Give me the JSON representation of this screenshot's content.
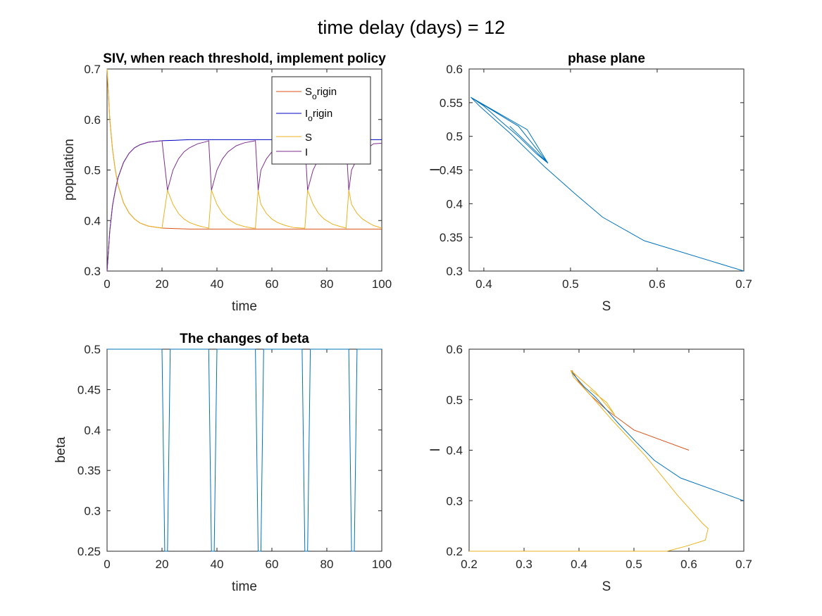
{
  "figure": {
    "suptitle": "time delay (days) = 12"
  },
  "chart_data": [
    {
      "type": "line",
      "title": "SIV, when reach threshold, implement policy",
      "xlabel": "time",
      "ylabel": "population",
      "xlim": [
        0,
        100
      ],
      "ylim": [
        0.3,
        0.7
      ],
      "xticks": [
        "0",
        "20",
        "40",
        "60",
        "80",
        "100"
      ],
      "yticks": [
        "0.3",
        "0.4",
        "0.5",
        "0.6",
        "0.7"
      ],
      "legend": {
        "position": "top-right",
        "entries": [
          {
            "base": "S",
            "sub": "o",
            "rest": "rigin",
            "color": "#d95319"
          },
          {
            "base": "I",
            "sub": "o",
            "rest": "rigin",
            "color": "#0000c0"
          },
          {
            "base": "S",
            "sub": "",
            "rest": "",
            "color": "#edb120"
          },
          {
            "base": "I",
            "sub": "",
            "rest": "",
            "color": "#7e2f8e"
          }
        ]
      },
      "series": [
        {
          "color": "#d95319",
          "x": [
            0,
            1,
            2,
            3,
            4,
            6,
            8,
            10,
            12,
            15,
            20,
            25,
            30,
            40,
            50,
            60,
            70,
            80,
            90,
            100
          ],
          "y": [
            0.7,
            0.6,
            0.54,
            0.5,
            0.47,
            0.435,
            0.415,
            0.403,
            0.395,
            0.389,
            0.385,
            0.384,
            0.383,
            0.383,
            0.383,
            0.383,
            0.383,
            0.383,
            0.383,
            0.383
          ]
        },
        {
          "color": "#0000c0",
          "x": [
            0,
            1,
            2,
            3,
            4,
            6,
            8,
            10,
            12,
            15,
            20,
            25,
            30,
            40,
            50,
            60,
            70,
            80,
            90,
            100
          ],
          "y": [
            0.3,
            0.38,
            0.43,
            0.46,
            0.485,
            0.515,
            0.533,
            0.544,
            0.55,
            0.555,
            0.558,
            0.559,
            0.56,
            0.56,
            0.56,
            0.56,
            0.56,
            0.56,
            0.56,
            0.56
          ]
        },
        {
          "color": "#edb120",
          "x": [
            0,
            1,
            2,
            3,
            4,
            6,
            8,
            10,
            12,
            15,
            20,
            22,
            24,
            26,
            28,
            30,
            33,
            36,
            37,
            38,
            40,
            42,
            44,
            47,
            50,
            53,
            54,
            55,
            56,
            58,
            60,
            62,
            65,
            68,
            71,
            72,
            73,
            75,
            77,
            79,
            82,
            85,
            87,
            88,
            89,
            91,
            93,
            95,
            97,
            100
          ],
          "y": [
            0.7,
            0.6,
            0.54,
            0.5,
            0.47,
            0.435,
            0.415,
            0.403,
            0.395,
            0.389,
            0.385,
            0.46,
            0.432,
            0.414,
            0.403,
            0.396,
            0.39,
            0.386,
            0.385,
            0.46,
            0.432,
            0.414,
            0.403,
            0.393,
            0.388,
            0.385,
            0.385,
            0.46,
            0.432,
            0.414,
            0.403,
            0.396,
            0.39,
            0.386,
            0.385,
            0.385,
            0.46,
            0.432,
            0.414,
            0.403,
            0.393,
            0.388,
            0.385,
            0.46,
            0.432,
            0.414,
            0.403,
            0.396,
            0.39,
            0.385
          ]
        },
        {
          "color": "#7e2f8e",
          "x": [
            0,
            1,
            2,
            3,
            4,
            6,
            8,
            10,
            12,
            15,
            20,
            22,
            24,
            26,
            28,
            30,
            33,
            36,
            37,
            38,
            40,
            42,
            44,
            47,
            50,
            53,
            54,
            55,
            56,
            58,
            60,
            62,
            65,
            68,
            71,
            72,
            73,
            75,
            77,
            79,
            82,
            85,
            87,
            88,
            89,
            91,
            93,
            95,
            97,
            100
          ],
          "y": [
            0.3,
            0.38,
            0.43,
            0.46,
            0.485,
            0.515,
            0.533,
            0.544,
            0.55,
            0.555,
            0.558,
            0.46,
            0.5,
            0.522,
            0.536,
            0.544,
            0.552,
            0.556,
            0.558,
            0.46,
            0.5,
            0.522,
            0.536,
            0.548,
            0.554,
            0.557,
            0.558,
            0.46,
            0.5,
            0.522,
            0.536,
            0.544,
            0.552,
            0.556,
            0.558,
            0.558,
            0.46,
            0.5,
            0.522,
            0.536,
            0.548,
            0.554,
            0.557,
            0.46,
            0.5,
            0.522,
            0.536,
            0.544,
            0.552,
            0.553
          ]
        }
      ]
    },
    {
      "type": "line",
      "title": "phase plane",
      "xlabel": "S",
      "ylabel": "I",
      "xlim": [
        0.383,
        0.7
      ],
      "ylim": [
        0.3,
        0.6
      ],
      "xticks": [
        "0.4",
        "0.5",
        "0.6",
        "0.7"
      ],
      "yticks": [
        "0.3",
        "0.35",
        "0.4",
        "0.45",
        "0.5",
        "0.55",
        "0.6"
      ],
      "series": [
        {
          "color": "#0072bd",
          "x": [
            0.7,
            0.585,
            0.537,
            0.505,
            0.47,
            0.45,
            0.43,
            0.415,
            0.395,
            0.385,
            0.45,
            0.474,
            0.46,
            0.44,
            0.42,
            0.4,
            0.385,
            0.44,
            0.474,
            0.45,
            0.43
          ],
          "y": [
            0.3,
            0.345,
            0.38,
            0.415,
            0.455,
            0.48,
            0.505,
            0.522,
            0.545,
            0.558,
            0.51,
            0.46,
            0.475,
            0.5,
            0.522,
            0.545,
            0.558,
            0.515,
            0.46,
            0.49,
            0.515
          ]
        }
      ]
    },
    {
      "type": "line",
      "title": "The changes of beta",
      "xlabel": "time",
      "ylabel": "beta",
      "xlim": [
        0,
        100
      ],
      "ylim": [
        0.25,
        0.5
      ],
      "xticks": [
        "0",
        "20",
        "40",
        "60",
        "80",
        "100"
      ],
      "yticks": [
        "0.25",
        "0.3",
        "0.35",
        "0.4",
        "0.45",
        "0.5"
      ],
      "series": [
        {
          "color": "#0072bd",
          "x": [
            0,
            20,
            21,
            22,
            23,
            37,
            38,
            39,
            40,
            54,
            55,
            56,
            57,
            71,
            72,
            73,
            74,
            88,
            89,
            90,
            91,
            100
          ],
          "y": [
            0.5,
            0.5,
            0.25,
            0.25,
            0.5,
            0.5,
            0.25,
            0.25,
            0.5,
            0.5,
            0.25,
            0.25,
            0.5,
            0.5,
            0.25,
            0.25,
            0.5,
            0.5,
            0.25,
            0.25,
            0.5,
            0.5
          ]
        }
      ]
    },
    {
      "type": "line",
      "title": "",
      "xlabel": "S",
      "ylabel": "I",
      "xlim": [
        0.2,
        0.7
      ],
      "ylim": [
        0.2,
        0.6
      ],
      "xticks": [
        "0.2",
        "0.3",
        "0.4",
        "0.5",
        "0.6",
        "0.7"
      ],
      "yticks": [
        "0.2",
        "0.3",
        "0.4",
        "0.5",
        "0.6"
      ],
      "series": [
        {
          "color": "#d95319",
          "x": [
            0.6,
            0.5,
            0.45,
            0.42,
            0.4,
            0.387
          ],
          "y": [
            0.4,
            0.44,
            0.48,
            0.51,
            0.535,
            0.558
          ]
        },
        {
          "color": "#0072bd",
          "x": [
            0.7,
            0.585,
            0.537,
            0.505,
            0.47,
            0.45,
            0.43,
            0.41,
            0.39,
            0.385
          ],
          "y": [
            0.3,
            0.345,
            0.38,
            0.415,
            0.455,
            0.48,
            0.505,
            0.525,
            0.55,
            0.558
          ]
        },
        {
          "color": "#edb120",
          "x": [
            0.2,
            0.3,
            0.4,
            0.5,
            0.56,
            0.595,
            0.63,
            0.635,
            0.625,
            0.58,
            0.52,
            0.46,
            0.42,
            0.39,
            0.385,
            0.43,
            0.465,
            0.45,
            0.42
          ],
          "y": [
            0.2,
            0.2,
            0.2,
            0.2,
            0.2,
            0.21,
            0.222,
            0.245,
            0.255,
            0.31,
            0.39,
            0.46,
            0.51,
            0.545,
            0.558,
            0.515,
            0.47,
            0.495,
            0.52
          ]
        }
      ]
    }
  ]
}
